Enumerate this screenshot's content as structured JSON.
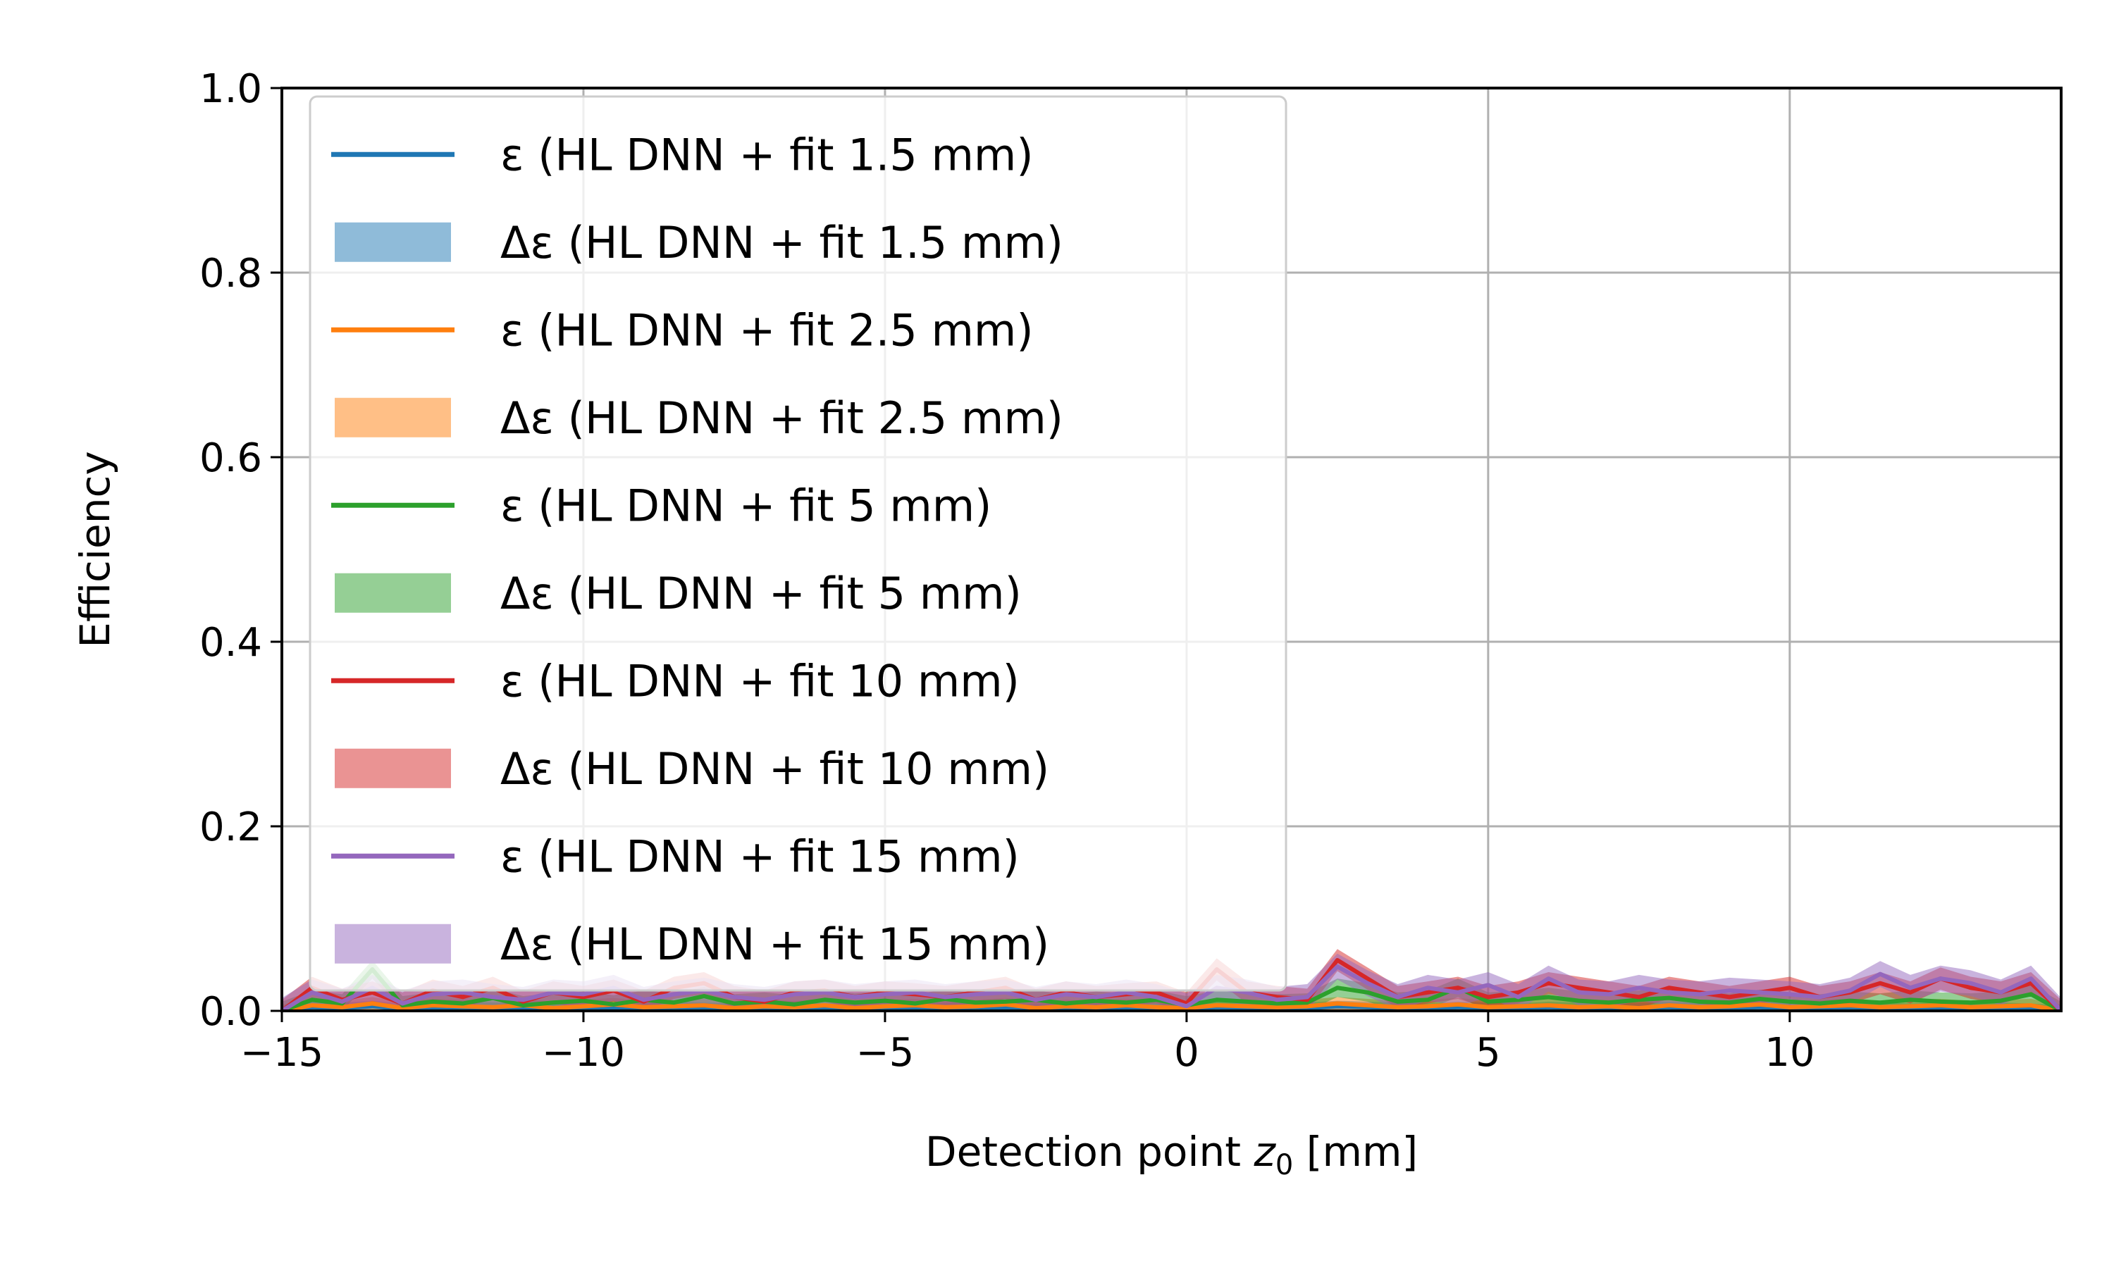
{
  "chart_data": {
    "type": "line",
    "xlabel": "Detection point z0 [mm]",
    "xlabel_parts": {
      "prefix": "Detection point ",
      "symbol": "z",
      "subscript": "0",
      "suffix": " [mm]"
    },
    "ylabel": "Efficiency",
    "xlim": [
      -15,
      14.5
    ],
    "ylim": [
      0,
      1.0
    ],
    "x_ticks": [
      -15,
      -10,
      -5,
      0,
      5,
      10
    ],
    "x_tick_labels": [
      "−15",
      "−10",
      "−5",
      "0",
      "5",
      "10"
    ],
    "y_ticks": [
      0.0,
      0.2,
      0.4,
      0.6,
      0.8,
      1.0
    ],
    "y_tick_labels": [
      "0.0",
      "0.2",
      "0.4",
      "0.6",
      "0.8",
      "1.0"
    ],
    "grid": true,
    "legend_position": "top-left",
    "legend": [
      {
        "kind": "line",
        "label": "ε (HL DNN + fit 1.5 mm)",
        "color": "#1f77b4"
      },
      {
        "kind": "band",
        "label": "Δε (HL DNN + fit 1.5 mm)",
        "color": "#8fbbd9"
      },
      {
        "kind": "line",
        "label": "ε (HL DNN + fit 2.5 mm)",
        "color": "#ff7f0e"
      },
      {
        "kind": "band",
        "label": "Δε (HL DNN + fit 2.5 mm)",
        "color": "#ffbf86"
      },
      {
        "kind": "line",
        "label": "ε (HL DNN + fit 5 mm)",
        "color": "#2ca02c"
      },
      {
        "kind": "band",
        "label": "Δε (HL DNN + fit 5 mm)",
        "color": "#95cf95"
      },
      {
        "kind": "line",
        "label": "ε (HL DNN + fit 10 mm)",
        "color": "#d62728"
      },
      {
        "kind": "band",
        "label": "Δε (HL DNN + fit 10 mm)",
        "color": "#ea9393"
      },
      {
        "kind": "line",
        "label": "ε (HL DNN + fit 15 mm)",
        "color": "#9467bd"
      },
      {
        "kind": "band",
        "label": "Δε (HL DNN + fit 15 mm)",
        "color": "#c9b3de"
      }
    ],
    "x": [
      -15.0,
      -14.5,
      -14.0,
      -13.5,
      -13.0,
      -12.5,
      -12.0,
      -11.5,
      -11.0,
      -10.5,
      -10.0,
      -9.5,
      -9.0,
      -8.5,
      -8.0,
      -7.5,
      -7.0,
      -6.5,
      -6.0,
      -5.5,
      -5.0,
      -4.5,
      -4.0,
      -3.5,
      -3.0,
      -2.5,
      -2.0,
      -1.5,
      -1.0,
      -0.5,
      0.0,
      0.5,
      1.0,
      1.5,
      2.0,
      2.5,
      3.0,
      3.5,
      4.0,
      4.5,
      5.0,
      5.5,
      6.0,
      6.5,
      7.0,
      7.5,
      8.0,
      8.5,
      9.0,
      9.5,
      10.0,
      10.5,
      11.0,
      11.5,
      12.0,
      12.5,
      13.0,
      13.5,
      14.0,
      14.5
    ],
    "series": [
      {
        "name": "ε (HL DNN + fit 1.5 mm)",
        "color": "#1f77b4",
        "band_color": "#8fbbd9",
        "band_halfwidth": 0.006,
        "values": [
          0.0,
          0.004,
          0.003,
          0.005,
          0.002,
          0.003,
          0.004,
          0.003,
          0.002,
          0.003,
          0.004,
          0.003,
          0.002,
          0.004,
          0.003,
          0.002,
          0.003,
          0.004,
          0.002,
          0.003,
          0.004,
          0.002,
          0.003,
          0.004,
          0.003,
          0.002,
          0.003,
          0.004,
          0.003,
          0.002,
          0.002,
          0.004,
          0.003,
          0.002,
          0.003,
          0.005,
          0.004,
          0.003,
          0.002,
          0.004,
          0.003,
          0.002,
          0.004,
          0.003,
          0.002,
          0.003,
          0.004,
          0.002,
          0.003,
          0.004,
          0.002,
          0.003,
          0.004,
          0.003,
          0.002,
          0.003,
          0.004,
          0.003,
          0.002,
          0.0
        ]
      },
      {
        "name": "ε (HL DNN + fit 2.5 mm)",
        "color": "#ff7f0e",
        "band_color": "#ffbf86",
        "band_halfwidth": 0.007,
        "values": [
          0.0,
          0.006,
          0.004,
          0.008,
          0.003,
          0.006,
          0.005,
          0.004,
          0.006,
          0.003,
          0.005,
          0.007,
          0.004,
          0.005,
          0.006,
          0.003,
          0.005,
          0.004,
          0.006,
          0.003,
          0.005,
          0.006,
          0.004,
          0.005,
          0.007,
          0.003,
          0.005,
          0.004,
          0.006,
          0.004,
          0.003,
          0.006,
          0.005,
          0.004,
          0.005,
          0.008,
          0.006,
          0.004,
          0.005,
          0.007,
          0.004,
          0.005,
          0.006,
          0.004,
          0.005,
          0.003,
          0.006,
          0.004,
          0.005,
          0.007,
          0.004,
          0.005,
          0.006,
          0.004,
          0.005,
          0.006,
          0.004,
          0.005,
          0.006,
          0.0
        ]
      },
      {
        "name": "ε (HL DNN + fit 5 mm)",
        "color": "#2ca02c",
        "band_color": "#95cf95",
        "band_halfwidth": 0.01,
        "values": [
          0.0,
          0.012,
          0.008,
          0.045,
          0.006,
          0.01,
          0.008,
          0.014,
          0.006,
          0.009,
          0.011,
          0.007,
          0.012,
          0.009,
          0.016,
          0.008,
          0.01,
          0.007,
          0.012,
          0.009,
          0.011,
          0.008,
          0.013,
          0.009,
          0.01,
          0.012,
          0.008,
          0.011,
          0.009,
          0.012,
          0.006,
          0.012,
          0.01,
          0.008,
          0.009,
          0.025,
          0.02,
          0.01,
          0.012,
          0.025,
          0.01,
          0.012,
          0.015,
          0.011,
          0.009,
          0.012,
          0.014,
          0.01,
          0.009,
          0.013,
          0.01,
          0.008,
          0.011,
          0.009,
          0.012,
          0.01,
          0.009,
          0.011,
          0.018,
          0.0
        ]
      },
      {
        "name": "ε (HL DNN + fit 10 mm)",
        "color": "#d62728",
        "band_color": "#ea9393",
        "band_halfwidth": 0.012,
        "values": [
          0.0,
          0.025,
          0.012,
          0.02,
          0.008,
          0.022,
          0.015,
          0.025,
          0.01,
          0.02,
          0.015,
          0.022,
          0.01,
          0.025,
          0.03,
          0.015,
          0.01,
          0.02,
          0.022,
          0.015,
          0.02,
          0.018,
          0.015,
          0.02,
          0.025,
          0.012,
          0.02,
          0.015,
          0.018,
          0.02,
          0.008,
          0.045,
          0.02,
          0.015,
          0.012,
          0.055,
          0.035,
          0.015,
          0.02,
          0.025,
          0.015,
          0.02,
          0.03,
          0.025,
          0.02,
          0.015,
          0.025,
          0.02,
          0.015,
          0.02,
          0.025,
          0.015,
          0.02,
          0.03,
          0.02,
          0.035,
          0.025,
          0.02,
          0.03,
          0.0
        ]
      },
      {
        "name": "ε (HL DNN + fit 15 mm)",
        "color": "#9467bd",
        "band_color": "#c9b3de",
        "band_halfwidth": 0.014,
        "values": [
          0.0,
          0.02,
          0.01,
          0.025,
          0.008,
          0.018,
          0.02,
          0.015,
          0.012,
          0.02,
          0.018,
          0.025,
          0.012,
          0.018,
          0.022,
          0.015,
          0.012,
          0.018,
          0.02,
          0.015,
          0.018,
          0.02,
          0.015,
          0.018,
          0.02,
          0.012,
          0.018,
          0.015,
          0.02,
          0.015,
          0.005,
          0.025,
          0.02,
          0.012,
          0.015,
          0.048,
          0.03,
          0.015,
          0.025,
          0.02,
          0.028,
          0.015,
          0.035,
          0.02,
          0.018,
          0.025,
          0.02,
          0.018,
          0.022,
          0.02,
          0.018,
          0.015,
          0.022,
          0.04,
          0.025,
          0.035,
          0.03,
          0.02,
          0.035,
          0.0
        ]
      }
    ]
  }
}
